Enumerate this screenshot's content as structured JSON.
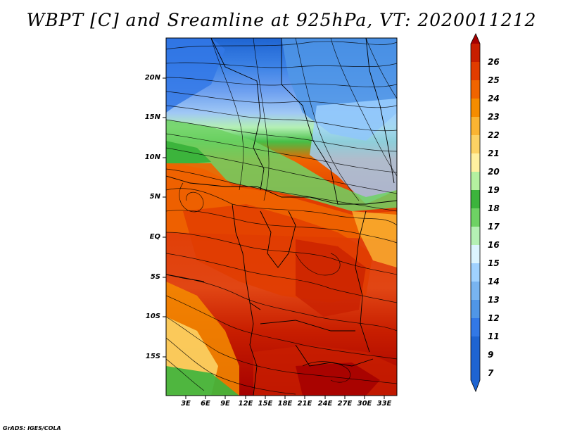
{
  "title": "WBPT [C] and Sreamline at 925hPa, VT: 2020011212",
  "latitude_labels": [
    "20N",
    "15N",
    "10N",
    "5N",
    "EQ",
    "5S",
    "10S",
    "15S"
  ],
  "longitude_labels": [
    "3E",
    "6E",
    "9E",
    "12E",
    "15E",
    "18E",
    "21E",
    "24E",
    "27E",
    "30E",
    "33E"
  ],
  "colorbar": {
    "unit": "C",
    "levels": [
      "26",
      "25",
      "24",
      "23",
      "22",
      "21",
      "20",
      "19",
      "18",
      "17",
      "16",
      "15",
      "14",
      "13",
      "12",
      "11",
      "9",
      "7"
    ],
    "colors": [
      "#a50000",
      "#c81e00",
      "#e13c00",
      "#f06400",
      "#f58c00",
      "#fab432",
      "#fcd264",
      "#fff0a0",
      "#b4f0a0",
      "#3cb43c",
      "#6ed264",
      "#b4f0b4",
      "#dcf5ff",
      "#a0d2ff",
      "#78b4f0",
      "#5096e6",
      "#3278e6",
      "#1e64d2"
    ]
  },
  "credit": "GrADS: IGES/COLA"
}
